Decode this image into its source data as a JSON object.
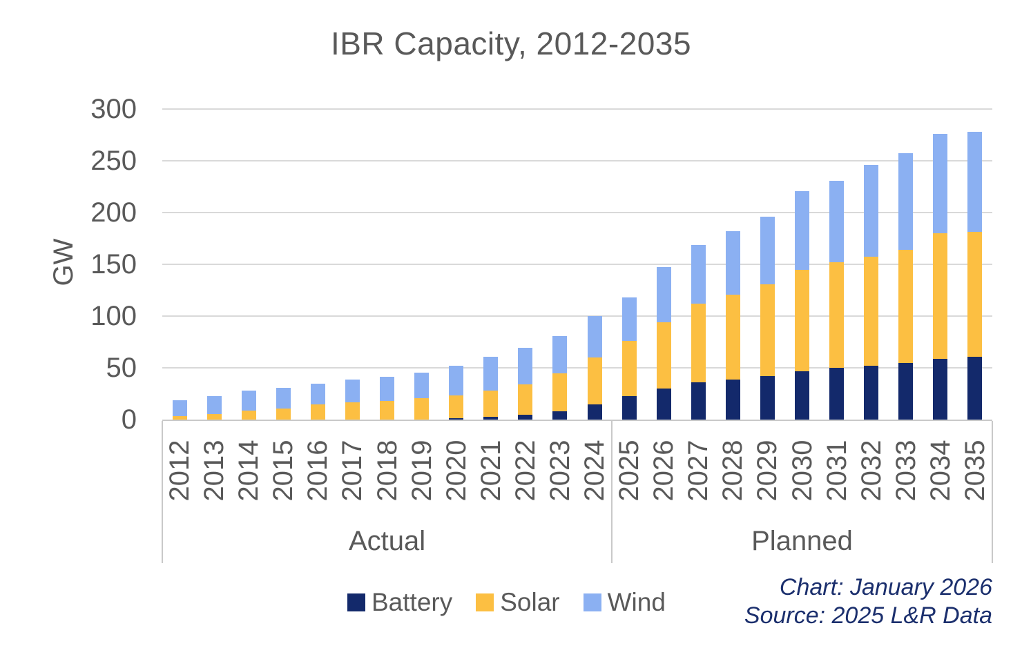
{
  "chart_data": {
    "type": "bar",
    "stacked": true,
    "title": "IBR Capacity, 2012-2035",
    "ylabel": "GW",
    "xlabel": "",
    "ylim": [
      0,
      300
    ],
    "yticks": [
      0,
      50,
      100,
      150,
      200,
      250,
      300
    ],
    "grid": true,
    "legend_position": "bottom",
    "categories": [
      "2012",
      "2013",
      "2014",
      "2015",
      "2016",
      "2017",
      "2018",
      "2019",
      "2020",
      "2021",
      "2022",
      "2023",
      "2024",
      "2025",
      "2026",
      "2027",
      "2028",
      "2029",
      "2030",
      "2031",
      "2032",
      "2033",
      "2034",
      "2035"
    ],
    "series": [
      {
        "name": "Battery",
        "color": "#13296B",
        "values": [
          0,
          0,
          0,
          0,
          0,
          0,
          0,
          0,
          1.5,
          3,
          5,
          8,
          15,
          23,
          30,
          36,
          39,
          42,
          47,
          50,
          52,
          54.5,
          59,
          61
        ]
      },
      {
        "name": "Solar",
        "color": "#FCBF42",
        "values": [
          3.5,
          5.5,
          8.5,
          10.5,
          14.5,
          17,
          18,
          20.5,
          22,
          25,
          29,
          36.5,
          45,
          53,
          64,
          76,
          82,
          89,
          97.5,
          102,
          105.5,
          109.5,
          121,
          120.5
        ]
      },
      {
        "name": "Wind",
        "color": "#8BB0F2",
        "values": [
          15.5,
          17.5,
          19.5,
          20.5,
          20.5,
          21.5,
          23.5,
          25,
          28.5,
          33,
          35.5,
          36.5,
          40,
          42,
          53.5,
          57,
          61,
          65,
          76.5,
          79,
          88.5,
          93.5,
          96,
          96.5
        ]
      }
    ],
    "sections": [
      {
        "label": "Actual",
        "from": "2012",
        "to": "2024"
      },
      {
        "label": "Planned",
        "from": "2025",
        "to": "2035"
      }
    ]
  },
  "footer": {
    "line1": "Chart: January 2026",
    "line2": "Source: 2025 L&R Data"
  },
  "colors": {
    "grid": "#D9D9D9",
    "axis_box": "#C9C9C9",
    "axis_text": "#595959",
    "footer_text": "#1B2F6D"
  }
}
